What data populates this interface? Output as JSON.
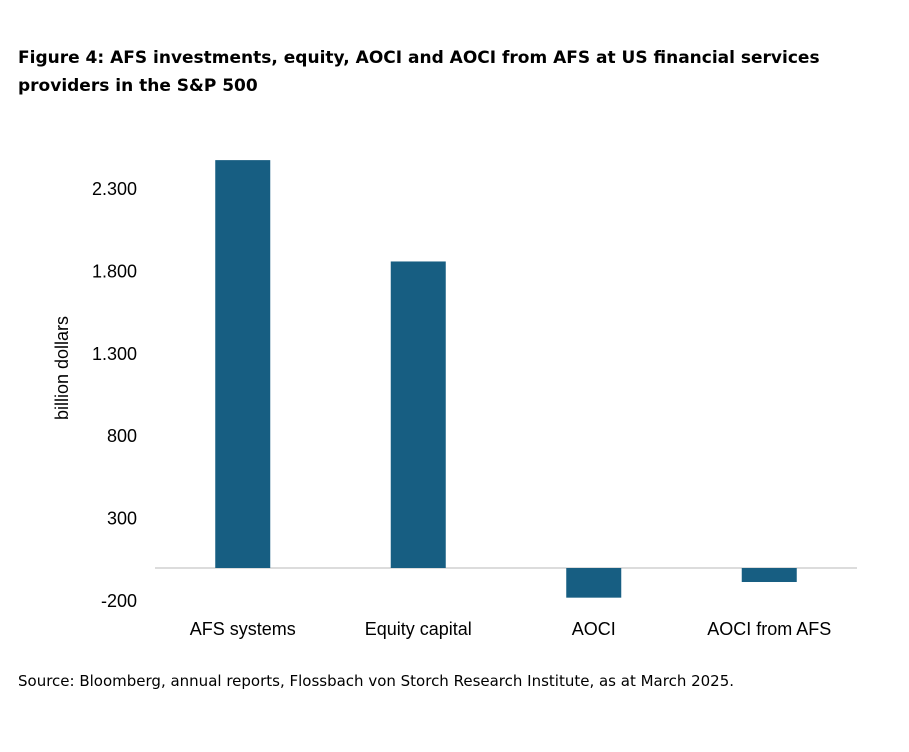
{
  "title": "Figure 4: AFS investments, equity, AOCI and AOCI from AFS at US financial services providers in the S&P 500",
  "source": "Source: Bloomberg, annual reports, Flossbach von Storch Research Institute, as at March 2025.",
  "chart_data": {
    "type": "bar",
    "categories": [
      "AFS systems",
      "Equity capital",
      "AOCI",
      "AOCI from AFS"
    ],
    "values": [
      2475,
      1860,
      -180,
      -85
    ],
    "ylabel": "billion dollars",
    "yticks": [
      -200,
      300,
      800,
      1300,
      1800,
      2300
    ],
    "ytick_labels": [
      "-200",
      "300",
      "800",
      "1.300",
      "1.800",
      "2.300"
    ],
    "ylim": [
      -250,
      2600
    ],
    "bar_color": "#175e82",
    "grid": false,
    "legend": "none"
  }
}
